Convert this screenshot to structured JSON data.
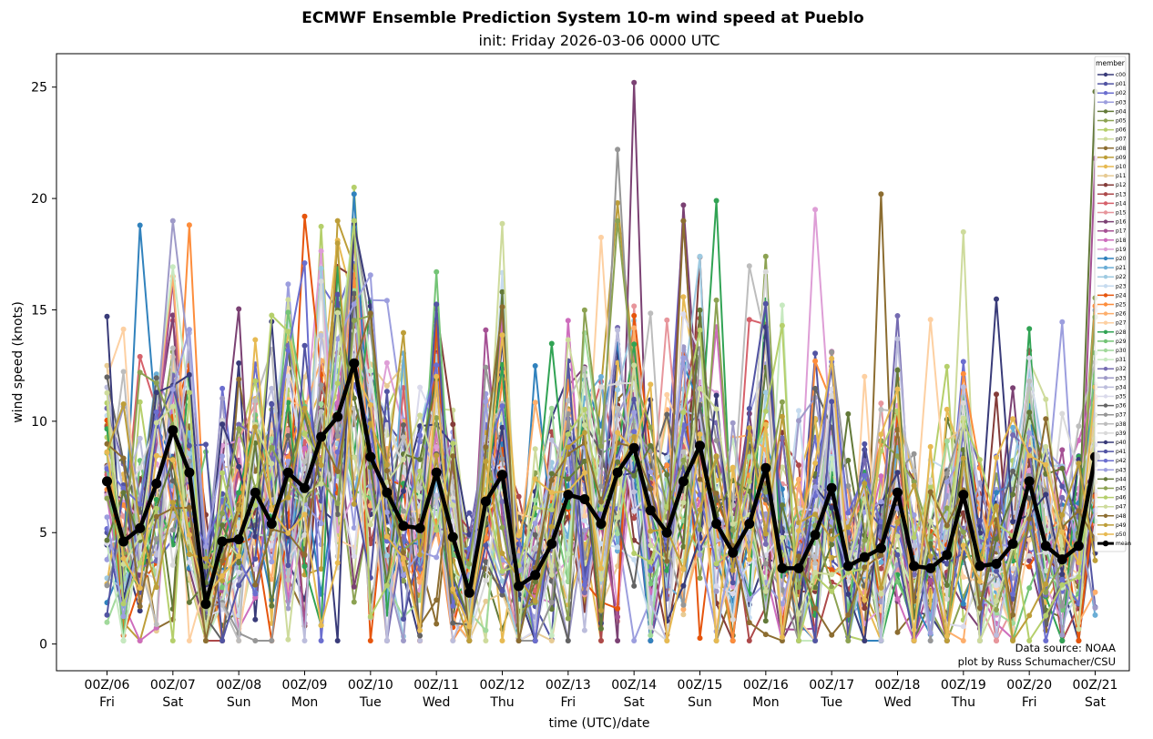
{
  "chart_data": {
    "type": "line",
    "title": "ECMWF Ensemble Prediction System 10-m wind speed at Pueblo",
    "subtitle": "init: Friday 2026-03-06 0000 UTC",
    "xlabel": "time (UTC)/date",
    "ylabel": "wind speed (knots)",
    "ylim": [
      -1.2,
      26.5
    ],
    "yticks": [
      0,
      5,
      10,
      15,
      20,
      25
    ],
    "x_step_hours": 6,
    "x_range_hours": [
      0,
      360
    ],
    "xticks": [
      {
        "hour": 0,
        "line1": "00Z/06",
        "line2": "Fri"
      },
      {
        "hour": 24,
        "line1": "00Z/07",
        "line2": "Sat"
      },
      {
        "hour": 48,
        "line1": "00Z/08",
        "line2": "Sun"
      },
      {
        "hour": 72,
        "line1": "00Z/09",
        "line2": "Mon"
      },
      {
        "hour": 96,
        "line1": "00Z/10",
        "line2": "Tue"
      },
      {
        "hour": 120,
        "line1": "00Z/11",
        "line2": "Wed"
      },
      {
        "hour": 144,
        "line1": "00Z/12",
        "line2": "Thu"
      },
      {
        "hour": 168,
        "line1": "00Z/13",
        "line2": "Fri"
      },
      {
        "hour": 192,
        "line1": "00Z/14",
        "line2": "Sat"
      },
      {
        "hour": 216,
        "line1": "00Z/15",
        "line2": "Sun"
      },
      {
        "hour": 240,
        "line1": "00Z/16",
        "line2": "Mon"
      },
      {
        "hour": 264,
        "line1": "00Z/17",
        "line2": "Tue"
      },
      {
        "hour": 288,
        "line1": "00Z/18",
        "line2": "Wed"
      },
      {
        "hour": 312,
        "line1": "00Z/19",
        "line2": "Thu"
      },
      {
        "hour": 336,
        "line1": "00Z/20",
        "line2": "Fri"
      },
      {
        "hour": 360,
        "line1": "00Z/21",
        "line2": "Sat"
      }
    ],
    "legend": {
      "title": "member",
      "position": "upper right"
    },
    "mean": {
      "name": "mean",
      "color": "#000000",
      "values": [
        7.3,
        4.6,
        5.2,
        7.2,
        9.6,
        7.7,
        1.8,
        4.6,
        4.7,
        6.8,
        5.4,
        7.7,
        7.0,
        9.3,
        10.2,
        12.6,
        8.4,
        6.8,
        5.3,
        5.2,
        7.7,
        4.8,
        2.3,
        6.4,
        7.6,
        2.6,
        3.1,
        4.5,
        6.7,
        6.5,
        5.4,
        7.7,
        8.8,
        6.0,
        5.0,
        7.3,
        8.9,
        5.4,
        4.1,
        5.4,
        7.9,
        3.4,
        3.4,
        4.9,
        7.0,
        3.5,
        3.9,
        4.3,
        6.8,
        3.5,
        3.4,
        4.0,
        6.7,
        3.5,
        3.6,
        4.5,
        7.3,
        4.4,
        3.8,
        4.4,
        8.4
      ]
    },
    "members": [
      {
        "name": "c00",
        "color": "#393b79"
      },
      {
        "name": "p01",
        "color": "#5254a3"
      },
      {
        "name": "p02",
        "color": "#6b6ecf"
      },
      {
        "name": "p03",
        "color": "#9c9ede"
      },
      {
        "name": "p04",
        "color": "#637939"
      },
      {
        "name": "p05",
        "color": "#8ca252"
      },
      {
        "name": "p06",
        "color": "#b5cf6b"
      },
      {
        "name": "p07",
        "color": "#cedb9c"
      },
      {
        "name": "p08",
        "color": "#8c6d31"
      },
      {
        "name": "p09",
        "color": "#bd9e39"
      },
      {
        "name": "p10",
        "color": "#e7ba52"
      },
      {
        "name": "p11",
        "color": "#e7cb94"
      },
      {
        "name": "p12",
        "color": "#843c39"
      },
      {
        "name": "p13",
        "color": "#ad494a"
      },
      {
        "name": "p14",
        "color": "#d6616b"
      },
      {
        "name": "p15",
        "color": "#e7969c"
      },
      {
        "name": "p16",
        "color": "#7b4173"
      },
      {
        "name": "p17",
        "color": "#a55194"
      },
      {
        "name": "p18",
        "color": "#ce6dbd"
      },
      {
        "name": "p19",
        "color": "#de9ed6"
      },
      {
        "name": "p20",
        "color": "#3182bd"
      },
      {
        "name": "p21",
        "color": "#6baed6"
      },
      {
        "name": "p22",
        "color": "#9ecae1"
      },
      {
        "name": "p23",
        "color": "#c6dbef"
      },
      {
        "name": "p24",
        "color": "#e6550d"
      },
      {
        "name": "p25",
        "color": "#fd8d3c"
      },
      {
        "name": "p26",
        "color": "#fdae6b"
      },
      {
        "name": "p27",
        "color": "#fdd0a2"
      },
      {
        "name": "p28",
        "color": "#31a354"
      },
      {
        "name": "p29",
        "color": "#74c476"
      },
      {
        "name": "p30",
        "color": "#a1d99b"
      },
      {
        "name": "p31",
        "color": "#c7e9c0"
      },
      {
        "name": "p32",
        "color": "#756bb1"
      },
      {
        "name": "p33",
        "color": "#9e9ac8"
      },
      {
        "name": "p34",
        "color": "#bcbddc"
      },
      {
        "name": "p35",
        "color": "#dadaeb"
      },
      {
        "name": "p36",
        "color": "#636363"
      },
      {
        "name": "p37",
        "color": "#969696"
      },
      {
        "name": "p38",
        "color": "#bdbdbd"
      },
      {
        "name": "p39",
        "color": "#d9d9d9"
      },
      {
        "name": "p40",
        "color": "#393b79"
      },
      {
        "name": "p41",
        "color": "#5254a3"
      },
      {
        "name": "p42",
        "color": "#6b6ecf"
      },
      {
        "name": "p43",
        "color": "#9c9ede"
      },
      {
        "name": "p44",
        "color": "#637939"
      },
      {
        "name": "p45",
        "color": "#8ca252"
      },
      {
        "name": "p46",
        "color": "#b5cf6b"
      },
      {
        "name": "p47",
        "color": "#cedb9c"
      },
      {
        "name": "p48",
        "color": "#8c6d31"
      },
      {
        "name": "p49",
        "color": "#bd9e39"
      },
      {
        "name": "p50",
        "color": "#e7ba52"
      }
    ],
    "notable_peaks": [
      {
        "member": "p16",
        "hour": 192,
        "value": 25.2
      },
      {
        "member": "p44",
        "hour": 360,
        "value": 24.8
      },
      {
        "member": "p37",
        "hour": 186,
        "value": 22.2
      },
      {
        "member": "p17",
        "hour": 360,
        "value": 21.8
      },
      {
        "member": "p08",
        "hour": 282,
        "value": 20.2
      },
      {
        "member": "p06",
        "hour": 90,
        "value": 20.5
      },
      {
        "member": "p20",
        "hour": 90,
        "value": 20.2
      },
      {
        "member": "p28",
        "hour": 222,
        "value": 19.9
      },
      {
        "member": "p09",
        "hour": 186,
        "value": 19.8
      },
      {
        "member": "p16",
        "hour": 210,
        "value": 19.7
      },
      {
        "member": "p19",
        "hour": 258,
        "value": 19.5
      },
      {
        "member": "p24",
        "hour": 72,
        "value": 19.2
      },
      {
        "member": "p20",
        "hour": 12,
        "value": 18.8
      }
    ]
  },
  "annotations": {
    "source": "Data source: NOAA",
    "credit": "plot by Russ Schumacher/CSU"
  }
}
